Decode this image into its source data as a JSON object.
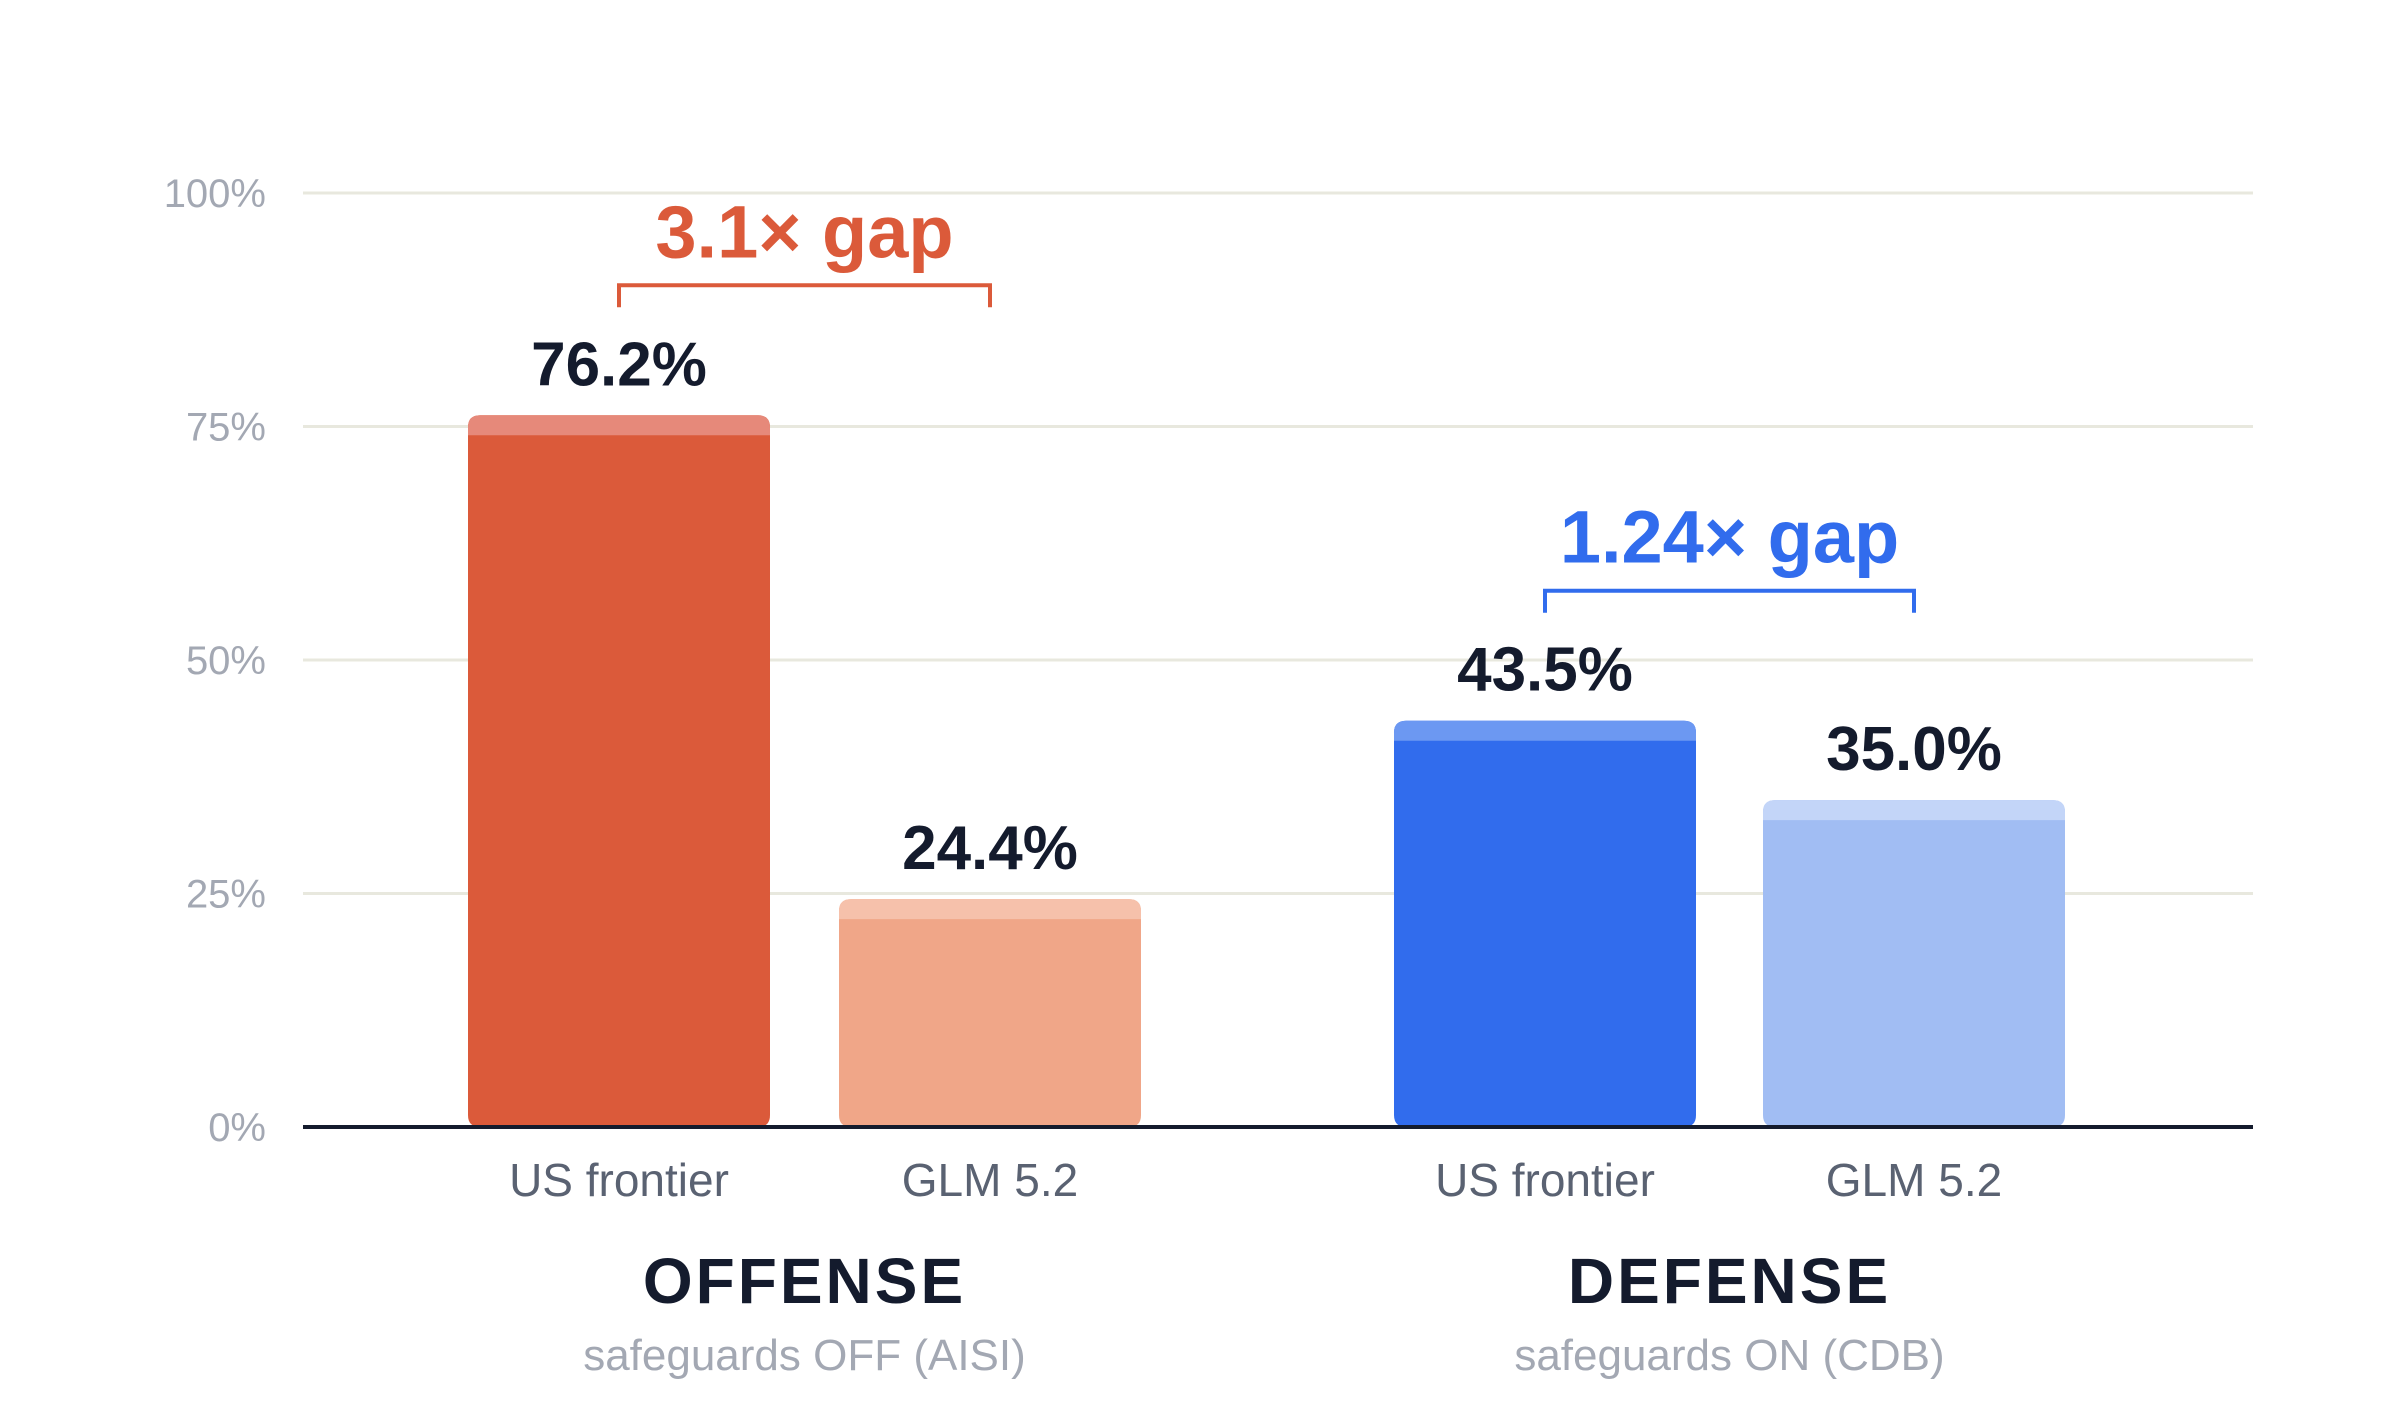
{
  "chart_data": {
    "type": "bar",
    "ylim": [
      0,
      100
    ],
    "y_ticks": [
      0,
      25,
      50,
      75,
      100
    ],
    "y_tick_labels": [
      "0%",
      "25%",
      "50%",
      "75%",
      "100%"
    ],
    "grid": true,
    "groups": [
      {
        "title": "OFFENSE",
        "subtitle": "safeguards OFF (AISI)",
        "gap_label": "3.1× gap",
        "gap_color": "#db5a3a",
        "bars": [
          {
            "category": "US frontier",
            "value": 76.2,
            "value_label": "76.2%",
            "color": "#db5a3a",
            "cap_color": "#e6897a"
          },
          {
            "category": "GLM 5.2",
            "value": 24.4,
            "value_label": "24.4%",
            "color": "#f0a688",
            "cap_color": "#f6c1ab"
          }
        ]
      },
      {
        "title": "DEFENSE",
        "subtitle": "safeguards ON (CDB)",
        "gap_label": "1.24× gap",
        "gap_color": "#316ced",
        "bars": [
          {
            "category": "US frontier",
            "value": 43.5,
            "value_label": "43.5%",
            "color": "#316ced",
            "cap_color": "#6c98f2"
          },
          {
            "category": "GLM 5.2",
            "value": 35.0,
            "value_label": "35.0%",
            "color": "#a1bdf3",
            "cap_color": "#c3d5f8"
          }
        ]
      }
    ]
  }
}
